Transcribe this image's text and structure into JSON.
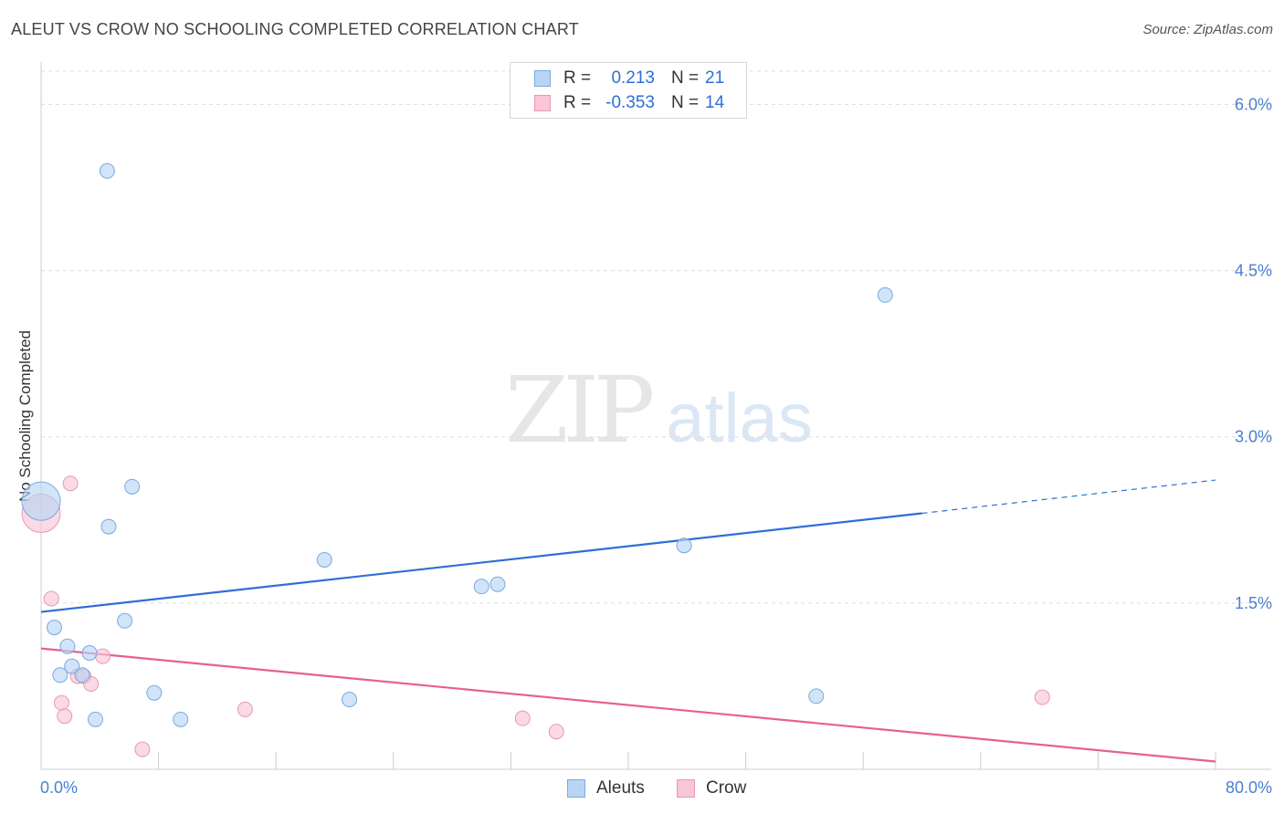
{
  "title": "ALEUT VS CROW NO SCHOOLING COMPLETED CORRELATION CHART",
  "source": "Source: ZipAtlas.com",
  "watermark": {
    "zip": "ZIP",
    "atlas": "atlas"
  },
  "colors": {
    "blue_fill": "#b9d5f5",
    "blue_stroke": "#7aa9e0",
    "blue_line": "#2e6fd6",
    "pink_fill": "#f8c6d6",
    "pink_stroke": "#eb97b3",
    "pink_line": "#e8608e",
    "tick_text": "#4a7fd1",
    "grid": "#dddddd"
  },
  "legend": {
    "rows": [
      {
        "r_label": "R =",
        "r_value": "0.213",
        "n_label": "N =",
        "n_value": "21",
        "series": "Aleuts"
      },
      {
        "r_label": "R =",
        "r_value": "-0.353",
        "n_label": "N =",
        "n_value": "14",
        "series": "Crow"
      }
    ]
  },
  "chart_data": {
    "type": "scatter",
    "title": "ALEUT VS CROW NO SCHOOLING COMPLETED CORRELATION CHART",
    "xlabel": "",
    "ylabel": "No Schooling Completed",
    "xlim": [
      0,
      80
    ],
    "ylim": [
      0,
      6.3
    ],
    "x_tick_labels": [
      {
        "value": 0,
        "label": "0.0%"
      },
      {
        "value": 80,
        "label": "80.0%"
      }
    ],
    "x_minor_ticks": [
      8,
      16,
      24,
      32,
      40,
      48,
      56,
      64,
      72,
      80
    ],
    "y_ticks": [
      {
        "value": 1.5,
        "label": "1.5%"
      },
      {
        "value": 3.0,
        "label": "3.0%"
      },
      {
        "value": 4.5,
        "label": "4.5%"
      },
      {
        "value": 6.0,
        "label": "6.0%"
      }
    ],
    "series": [
      {
        "name": "Aleuts",
        "color": "#2e6fd6",
        "points": [
          {
            "x": 0.0,
            "y": 2.42,
            "size": "large"
          },
          {
            "x": 4.5,
            "y": 5.4
          },
          {
            "x": 57.5,
            "y": 4.28
          },
          {
            "x": 6.2,
            "y": 2.55
          },
          {
            "x": 4.6,
            "y": 2.19
          },
          {
            "x": 19.3,
            "y": 1.89
          },
          {
            "x": 43.8,
            "y": 2.02
          },
          {
            "x": 31.1,
            "y": 1.67
          },
          {
            "x": 30.0,
            "y": 1.65
          },
          {
            "x": 5.7,
            "y": 1.34
          },
          {
            "x": 0.9,
            "y": 1.28
          },
          {
            "x": 1.8,
            "y": 1.11
          },
          {
            "x": 3.3,
            "y": 1.05
          },
          {
            "x": 2.1,
            "y": 0.93
          },
          {
            "x": 1.3,
            "y": 0.85
          },
          {
            "x": 2.8,
            "y": 0.85
          },
          {
            "x": 7.7,
            "y": 0.69
          },
          {
            "x": 21.0,
            "y": 0.63
          },
          {
            "x": 52.8,
            "y": 0.66
          },
          {
            "x": 3.7,
            "y": 0.45
          },
          {
            "x": 9.5,
            "y": 0.45
          }
        ],
        "trend": {
          "x0": 0,
          "y0": 1.42,
          "x1": 60,
          "y1": 2.31,
          "dashed_to_x": 80,
          "dashed_to_y": 2.61
        }
      },
      {
        "name": "Crow",
        "color": "#e8608e",
        "points": [
          {
            "x": 0.0,
            "y": 2.31,
            "size": "large"
          },
          {
            "x": 2.0,
            "y": 2.58
          },
          {
            "x": 0.7,
            "y": 1.54
          },
          {
            "x": 4.2,
            "y": 1.02
          },
          {
            "x": 2.5,
            "y": 0.84
          },
          {
            "x": 2.9,
            "y": 0.84
          },
          {
            "x": 3.4,
            "y": 0.77
          },
          {
            "x": 1.4,
            "y": 0.6
          },
          {
            "x": 1.6,
            "y": 0.48
          },
          {
            "x": 13.9,
            "y": 0.54
          },
          {
            "x": 32.8,
            "y": 0.46
          },
          {
            "x": 35.1,
            "y": 0.34
          },
          {
            "x": 68.2,
            "y": 0.65
          },
          {
            "x": 6.9,
            "y": 0.18
          }
        ],
        "trend": {
          "x0": 0,
          "y0": 1.09,
          "x1": 80,
          "y1": 0.07
        }
      }
    ],
    "legend_position": "top-center"
  }
}
